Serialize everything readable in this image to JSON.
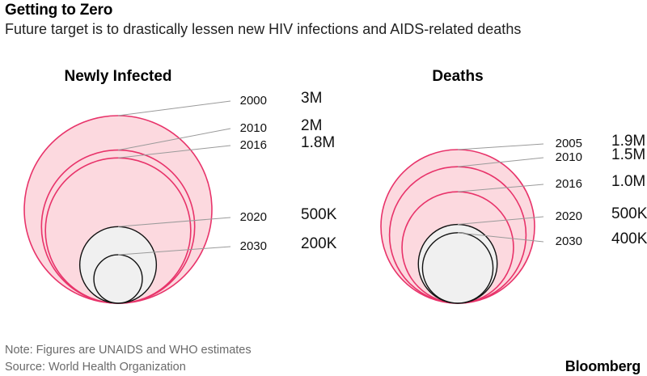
{
  "title": "Getting to Zero",
  "subtitle": "Future target is to drastically lessen new HIV infections and AIDS-related deaths",
  "note": "Note: Figures are UNAIDS and WHO estimates",
  "source": "Source: World Health Organization",
  "brand": "Bloomberg",
  "colors": {
    "historic_fill": "#fcd9df",
    "historic_stroke": "#e8336a",
    "target_fill": "#f0f0f0",
    "target_stroke": "#111111",
    "leader": "#9a9a9a"
  },
  "chart_data": [
    {
      "type": "nested-bubble",
      "title": "Newly Infected",
      "points": [
        {
          "year": "2000",
          "label": "3M",
          "value": 3000000,
          "target": false
        },
        {
          "year": "2010",
          "label": "2M",
          "value": 2000000,
          "target": false
        },
        {
          "year": "2016",
          "label": "1.8M",
          "value": 1800000,
          "target": false
        },
        {
          "year": "2020",
          "label": "500K",
          "value": 500000,
          "target": true
        },
        {
          "year": "2030",
          "label": "200K",
          "value": 200000,
          "target": true
        }
      ]
    },
    {
      "type": "nested-bubble",
      "title": "Deaths",
      "points": [
        {
          "year": "2005",
          "label": "1.9M",
          "value": 1900000,
          "target": false
        },
        {
          "year": "2010",
          "label": "1.5M",
          "value": 1500000,
          "target": false
        },
        {
          "year": "2016",
          "label": "1.0M",
          "value": 1000000,
          "target": false
        },
        {
          "year": "2020",
          "label": "500K",
          "value": 500000,
          "target": true
        },
        {
          "year": "2030",
          "label": "400K",
          "value": 400000,
          "target": true
        }
      ]
    }
  ]
}
